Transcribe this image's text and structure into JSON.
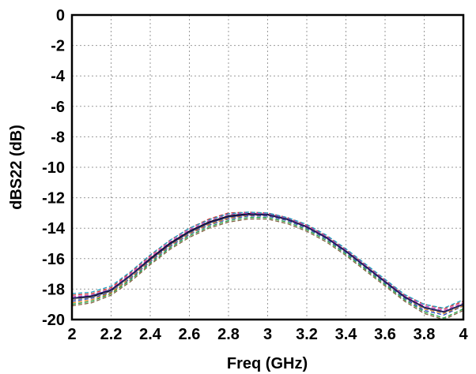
{
  "chart_data": {
    "type": "line",
    "title": "",
    "xlabel": "Freq (GHz)",
    "ylabel": "dBS22 (dB)",
    "xlim": [
      2,
      4
    ],
    "ylim": [
      -20,
      0
    ],
    "grid": true,
    "legend": "none",
    "x_ticks": [
      "2",
      "2.2",
      "2.4",
      "2.6",
      "2.8",
      "3",
      "3.2",
      "3.4",
      "3.6",
      "3.8",
      "4"
    ],
    "y_ticks": [
      "0",
      "-2",
      "-4",
      "-6",
      "-8",
      "-10",
      "-12",
      "-14",
      "-16",
      "-18",
      "-20"
    ],
    "x": [
      2.0,
      2.1,
      2.2,
      2.3,
      2.4,
      2.5,
      2.6,
      2.7,
      2.8,
      2.9,
      3.0,
      3.1,
      3.2,
      3.3,
      3.4,
      3.5,
      3.6,
      3.7,
      3.8,
      3.9,
      4.0
    ],
    "series": [
      {
        "color": "#000000",
        "dashed": false,
        "values": [
          -18.6,
          -18.5,
          -18.1,
          -17.1,
          -16.0,
          -15.0,
          -14.2,
          -13.6,
          -13.2,
          -13.05,
          -13.1,
          -13.4,
          -13.9,
          -14.6,
          -15.5,
          -16.5,
          -17.5,
          -18.5,
          -19.2,
          -19.5,
          -19.0
        ]
      },
      {
        "color": "#1f3fbf",
        "dashed": true,
        "values": [
          -18.8,
          -18.6,
          -18.2,
          -17.3,
          -16.2,
          -15.2,
          -14.4,
          -13.8,
          -13.4,
          -13.2,
          -13.2,
          -13.5,
          -14.0,
          -14.7,
          -15.6,
          -16.6,
          -17.6,
          -18.6,
          -19.4,
          -19.7,
          -19.1
        ]
      },
      {
        "color": "#d03030",
        "dashed": true,
        "values": [
          -18.4,
          -18.3,
          -17.9,
          -16.9,
          -15.8,
          -14.8,
          -14.0,
          -13.4,
          -13.0,
          -12.95,
          -13.0,
          -13.3,
          -13.8,
          -14.5,
          -15.4,
          -16.4,
          -17.4,
          -18.4,
          -19.0,
          -19.3,
          -18.8
        ]
      },
      {
        "color": "#20a040",
        "dashed": true,
        "values": [
          -19.0,
          -18.8,
          -18.3,
          -17.4,
          -16.3,
          -15.3,
          -14.5,
          -13.9,
          -13.5,
          -13.3,
          -13.3,
          -13.6,
          -14.1,
          -14.8,
          -15.7,
          -16.7,
          -17.7,
          -18.7,
          -19.5,
          -19.9,
          -19.3
        ]
      },
      {
        "color": "#c040c0",
        "dashed": true,
        "values": [
          -18.5,
          -18.4,
          -18.0,
          -17.0,
          -15.9,
          -14.9,
          -14.1,
          -13.5,
          -13.1,
          -13.0,
          -13.05,
          -13.35,
          -13.85,
          -14.55,
          -15.45,
          -16.45,
          -17.45,
          -18.45,
          -19.1,
          -19.4,
          -18.9
        ]
      },
      {
        "color": "#e08020",
        "dashed": true,
        "values": [
          -18.9,
          -18.7,
          -18.25,
          -17.25,
          -16.15,
          -15.15,
          -14.35,
          -13.75,
          -13.35,
          -13.15,
          -13.15,
          -13.45,
          -13.95,
          -14.65,
          -15.55,
          -16.55,
          -17.55,
          -18.55,
          -19.3,
          -19.6,
          -19.1
        ]
      },
      {
        "color": "#20a0c0",
        "dashed": true,
        "values": [
          -18.3,
          -18.2,
          -17.8,
          -16.85,
          -15.75,
          -14.8,
          -14.0,
          -13.45,
          -13.05,
          -12.95,
          -13.0,
          -13.3,
          -13.75,
          -14.45,
          -15.35,
          -16.35,
          -17.35,
          -18.35,
          -19.0,
          -19.25,
          -18.7
        ]
      },
      {
        "color": "#806040",
        "dashed": true,
        "values": [
          -19.1,
          -18.9,
          -18.4,
          -17.5,
          -16.4,
          -15.4,
          -14.6,
          -14.0,
          -13.6,
          -13.4,
          -13.4,
          -13.7,
          -14.2,
          -14.9,
          -15.8,
          -16.8,
          -17.8,
          -18.8,
          -19.6,
          -20.0,
          -19.4
        ]
      },
      {
        "color": "#808080",
        "dashed": true,
        "values": [
          -18.7,
          -18.55,
          -18.15,
          -17.2,
          -16.1,
          -15.1,
          -14.3,
          -13.7,
          -13.3,
          -13.1,
          -13.15,
          -13.45,
          -13.95,
          -14.65,
          -15.55,
          -16.55,
          -17.55,
          -18.55,
          -19.25,
          -19.55,
          -19.05
        ]
      },
      {
        "color": "#202060",
        "dashed": false,
        "values": [
          -18.6,
          -18.45,
          -18.05,
          -17.1,
          -16.05,
          -15.05,
          -14.25,
          -13.65,
          -13.25,
          -13.1,
          -13.12,
          -13.42,
          -13.92,
          -14.62,
          -15.52,
          -16.52,
          -17.52,
          -18.52,
          -19.2,
          -19.5,
          -19.0
        ]
      }
    ]
  }
}
